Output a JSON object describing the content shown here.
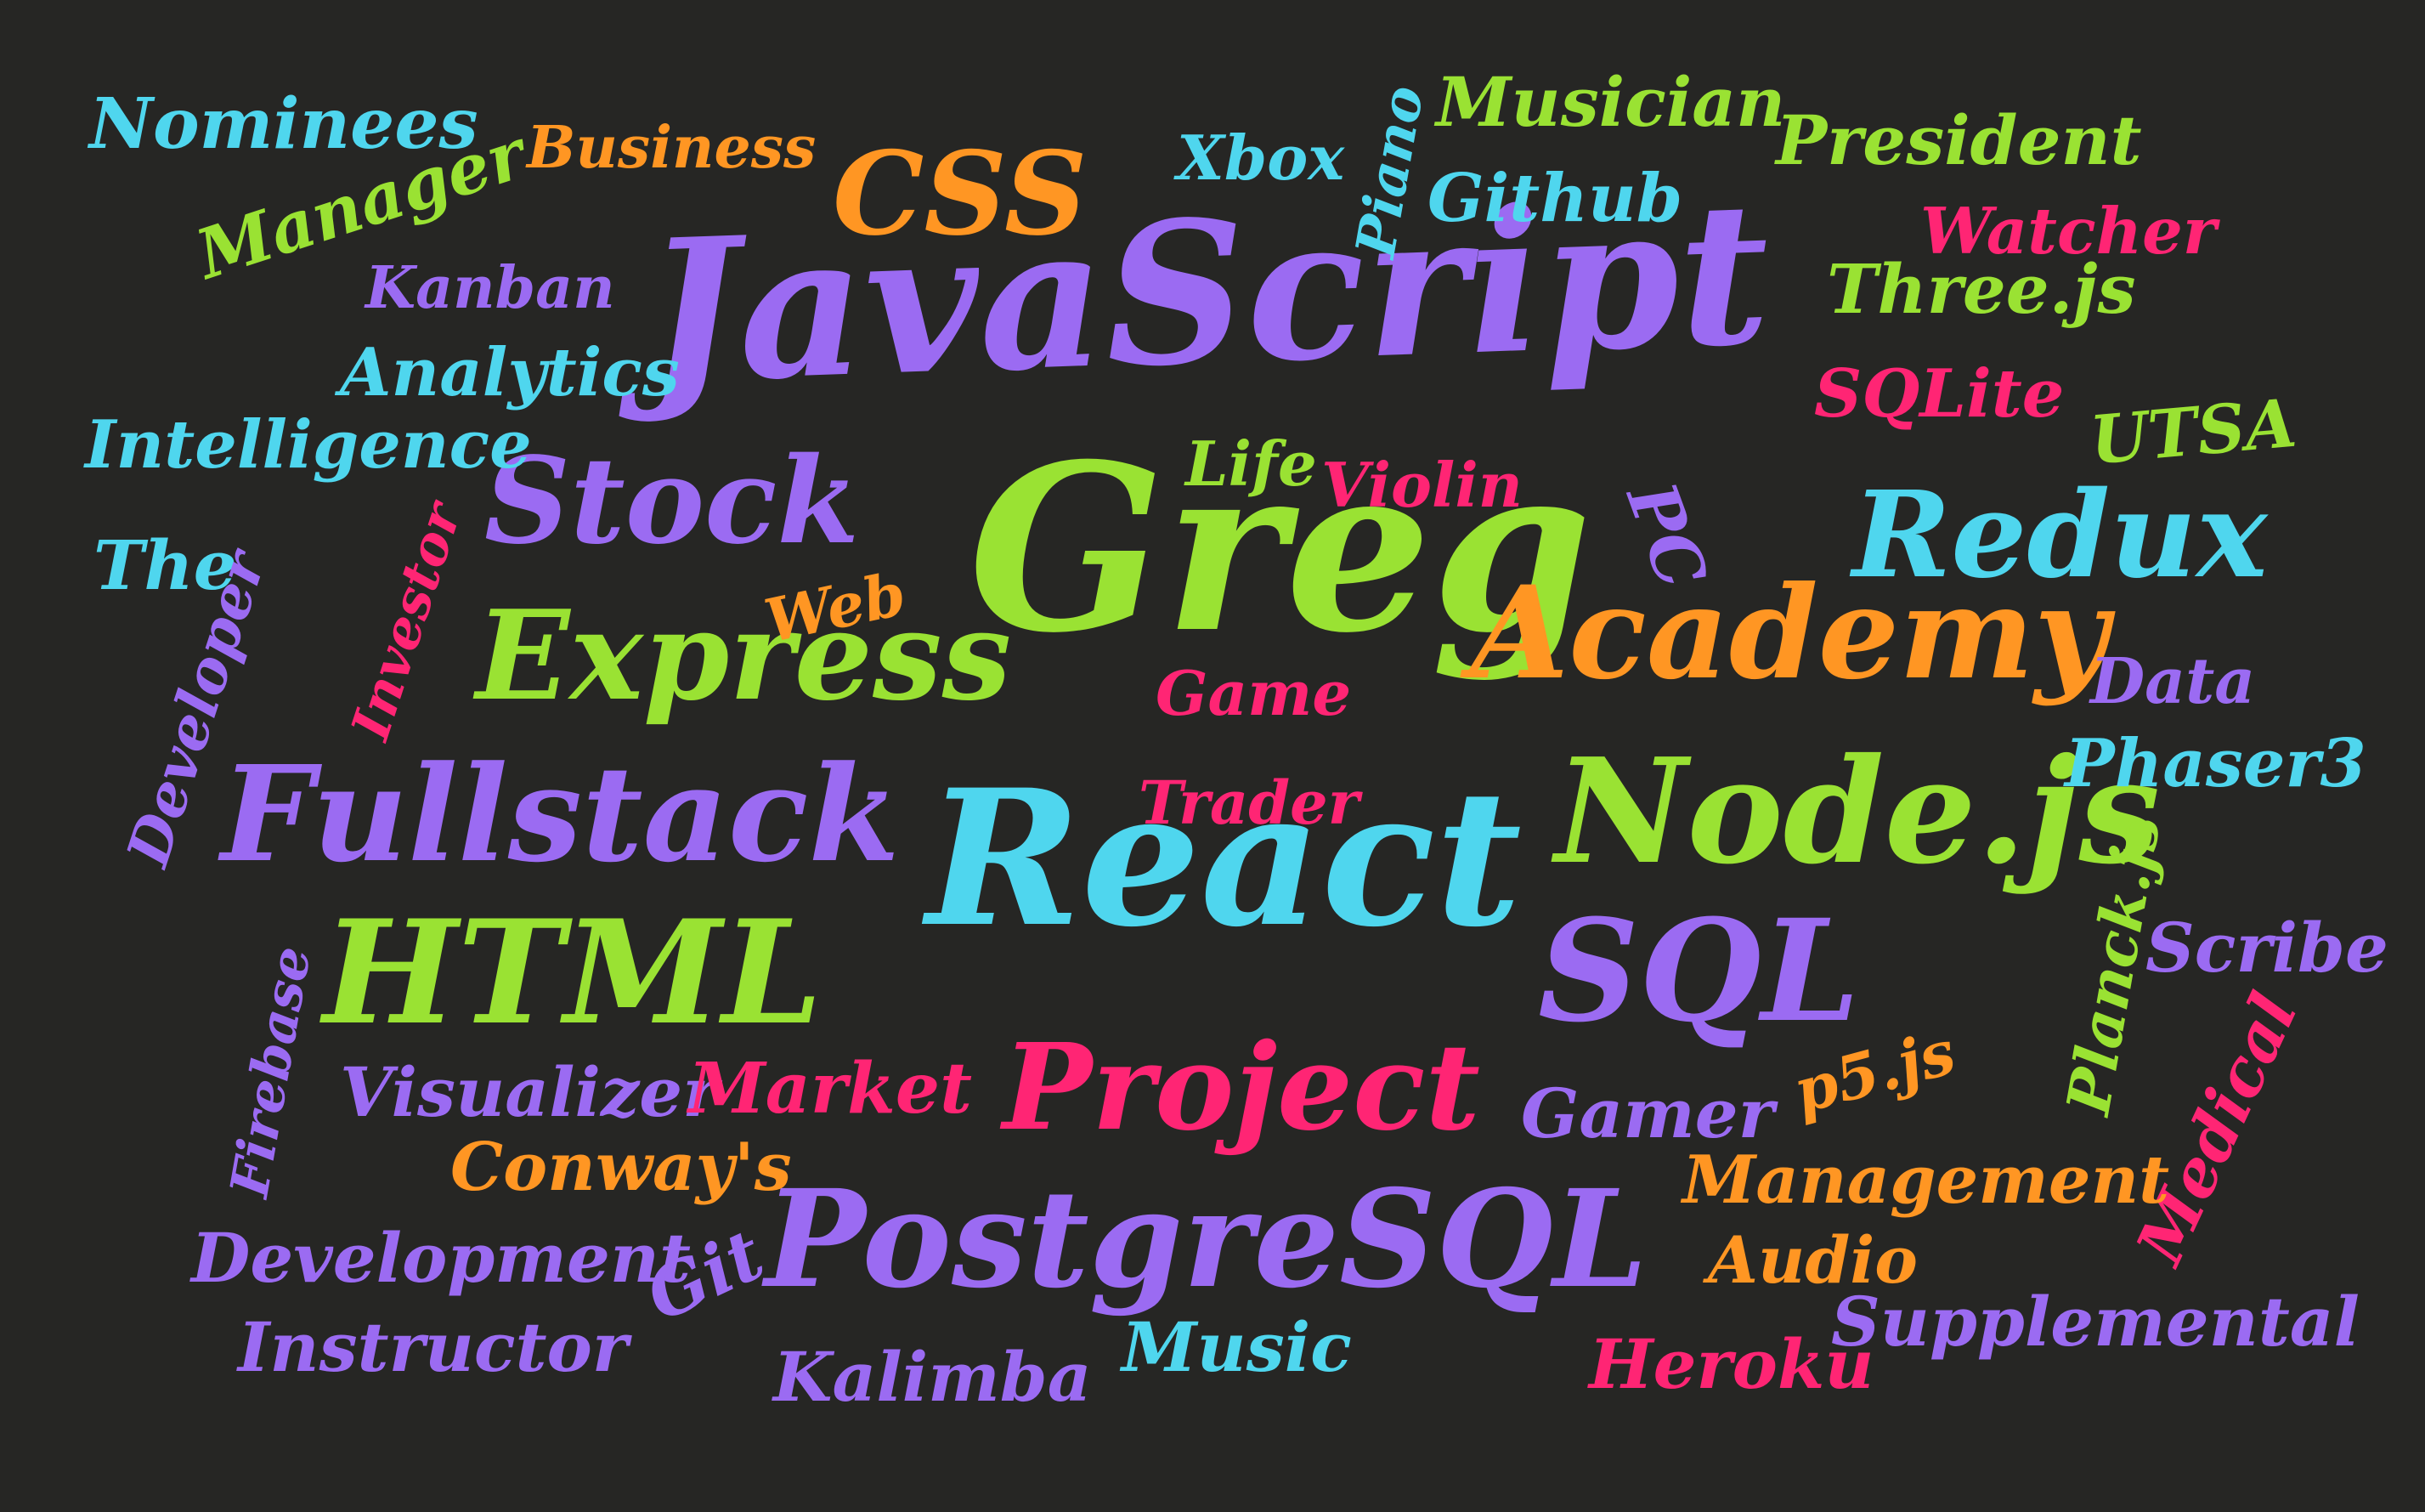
{
  "colors": {
    "background": "#262624",
    "purple": "#9B6BF2",
    "green": "#9AE233",
    "cyan": "#4FD6EE",
    "orange": "#FF9623",
    "pink": "#FF2574"
  },
  "words": [
    {
      "id": "javascript",
      "text": "JavaScript",
      "color": "purple"
    },
    {
      "id": "greg",
      "text": "Greg",
      "color": "green"
    },
    {
      "id": "react",
      "text": "React",
      "color": "cyan"
    },
    {
      "id": "node-js",
      "text": "Node.js",
      "color": "green"
    },
    {
      "id": "postgresql",
      "text": "PostgreSQL",
      "color": "purple"
    },
    {
      "id": "fullstack",
      "text": "Fullstack",
      "color": "purple"
    },
    {
      "id": "html",
      "text": "HTML",
      "color": "green"
    },
    {
      "id": "academy",
      "text": "Academy",
      "color": "orange"
    },
    {
      "id": "express",
      "text": "Express",
      "color": "green"
    },
    {
      "id": "redux",
      "text": "Redux",
      "color": "cyan"
    },
    {
      "id": "sql",
      "text": "SQL",
      "color": "purple"
    },
    {
      "id": "project",
      "text": "Project",
      "color": "pink"
    },
    {
      "id": "css",
      "text": "CSS",
      "color": "orange"
    },
    {
      "id": "stock",
      "text": "Stock",
      "color": "purple"
    },
    {
      "id": "nominees",
      "text": "Nominees",
      "color": "cyan"
    },
    {
      "id": "business",
      "text": "Business",
      "color": "orange"
    },
    {
      "id": "manager",
      "text": "Manager",
      "color": "green"
    },
    {
      "id": "kanban",
      "text": "Kanban",
      "color": "purple"
    },
    {
      "id": "analytics",
      "text": "Analytics",
      "color": "cyan"
    },
    {
      "id": "intelligence",
      "text": "Intelligence",
      "color": "cyan"
    },
    {
      "id": "the",
      "text": "The",
      "color": "cyan"
    },
    {
      "id": "developer",
      "text": "Developer",
      "color": "purple"
    },
    {
      "id": "investor",
      "text": "Investor",
      "color": "pink"
    },
    {
      "id": "firebase",
      "text": "Firebase",
      "color": "purple"
    },
    {
      "id": "visualizer",
      "text": "Visualizer",
      "color": "purple"
    },
    {
      "id": "conways",
      "text": "Conway's",
      "color": "orange"
    },
    {
      "id": "development",
      "text": "Development",
      "color": "purple"
    },
    {
      "id": "instructor",
      "text": "Instructor",
      "color": "purple"
    },
    {
      "id": "git",
      "text": "Git",
      "color": "purple"
    },
    {
      "id": "kalimba",
      "text": "Kalimba",
      "color": "purple"
    },
    {
      "id": "music",
      "text": "Music",
      "color": "cyan"
    },
    {
      "id": "market",
      "text": "Market",
      "color": "pink"
    },
    {
      "id": "xbox",
      "text": "Xbox",
      "color": "cyan"
    },
    {
      "id": "piano",
      "text": "Piano",
      "color": "cyan"
    },
    {
      "id": "musician",
      "text": "Musician",
      "color": "green"
    },
    {
      "id": "github",
      "text": "Github",
      "color": "cyan"
    },
    {
      "id": "president",
      "text": "President",
      "color": "green"
    },
    {
      "id": "watcher",
      "text": "Watcher",
      "color": "pink"
    },
    {
      "id": "three-js",
      "text": "Three.js",
      "color": "green"
    },
    {
      "id": "sqlite",
      "text": "SQLite",
      "color": "pink"
    },
    {
      "id": "utsa",
      "text": "UTSA",
      "color": "green"
    },
    {
      "id": "life",
      "text": "Life",
      "color": "green"
    },
    {
      "id": "violin",
      "text": "Violin",
      "color": "pink"
    },
    {
      "id": "pc",
      "text": "PC",
      "color": "purple"
    },
    {
      "id": "web",
      "text": "Web",
      "color": "orange"
    },
    {
      "id": "game",
      "text": "Game",
      "color": "pink"
    },
    {
      "id": "trader",
      "text": "Trader",
      "color": "pink"
    },
    {
      "id": "data",
      "text": "Data",
      "color": "purple"
    },
    {
      "id": "phaser3",
      "text": "Phaser3",
      "color": "cyan"
    },
    {
      "id": "planck-js",
      "text": "Planck.js",
      "color": "green"
    },
    {
      "id": "scribe",
      "text": "Scribe",
      "color": "purple"
    },
    {
      "id": "medical",
      "text": "Medical",
      "color": "pink"
    },
    {
      "id": "p5-js",
      "text": "p5.js",
      "color": "orange"
    },
    {
      "id": "gamer",
      "text": "Gamer",
      "color": "purple"
    },
    {
      "id": "management",
      "text": "Management",
      "color": "orange"
    },
    {
      "id": "audio",
      "text": "Audio",
      "color": "orange"
    },
    {
      "id": "supplemental",
      "text": "Supplemental",
      "color": "purple"
    },
    {
      "id": "heroku",
      "text": "Heroku",
      "color": "pink"
    }
  ]
}
